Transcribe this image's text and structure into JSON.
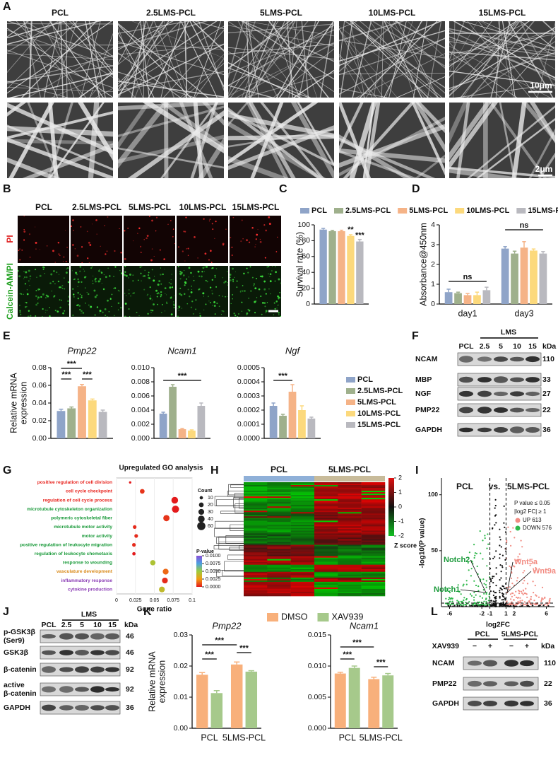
{
  "panel_labels": [
    "A",
    "B",
    "C",
    "D",
    "E",
    "F",
    "G",
    "H",
    "I",
    "J",
    "K",
    "L"
  ],
  "sem": {
    "columns": [
      "PCL",
      "2.5LMS-PCL",
      "5LMS-PCL",
      "10LMS-PCL",
      "15LMS-PCL"
    ],
    "scale_bars": [
      "10μm",
      "2μm"
    ]
  },
  "live_dead": {
    "columns": [
      "PCL",
      "2.5LMS-PCL",
      "5LMS-PCL",
      "10LMS-PCL",
      "15LMS-PCL"
    ],
    "rows": [
      "PI",
      "Calcein-AM/PI"
    ]
  },
  "blot_f": {
    "group": "LMS",
    "lanes": [
      "PCL",
      "2.5",
      "5",
      "10",
      "15"
    ],
    "unit": "kDa",
    "rows": [
      {
        "lines": [
          "NCAM"
        ],
        "kda": 110
      },
      {
        "lines": [
          "MBP"
        ],
        "kda": 33
      },
      {
        "lines": [
          "NGF"
        ],
        "kda": 27
      },
      {
        "lines": [
          "PMP22"
        ],
        "kda": 22
      },
      {
        "lines": [
          "GAPDH"
        ],
        "kda": 36
      }
    ]
  },
  "blot_j": {
    "group": "LMS",
    "lanes": [
      "PCL",
      "2.5",
      "5",
      "10",
      "15"
    ],
    "unit": "kDa",
    "rows": [
      {
        "lines": [
          "p-GSK3β",
          "(Ser9)"
        ],
        "kda": 46
      },
      {
        "lines": [
          "GSK3β"
        ],
        "kda": 46
      },
      {
        "lines": [
          "β-catenin"
        ],
        "kda": 92
      },
      {
        "lines": [
          "active",
          "β-catenin"
        ],
        "kda": 92
      },
      {
        "lines": [
          "GAPDH"
        ],
        "kda": 36
      }
    ]
  },
  "blot_l": {
    "groups": [
      "PCL",
      "5LMS-PCL"
    ],
    "treatment": "XAV939",
    "lanes": [
      "−",
      "+",
      "−",
      "+"
    ],
    "unit": "kDa",
    "rows": [
      {
        "lines": [
          "NCAM"
        ],
        "kda": 110
      },
      {
        "lines": [
          "PMP22"
        ],
        "kda": 22
      },
      {
        "lines": [
          "GAPDH"
        ],
        "kda": 36
      }
    ]
  },
  "heatmap": {
    "groups": [
      "PCL",
      "5LMS-PCL"
    ],
    "scale_ticks": [
      2,
      1,
      0,
      -1,
      -2
    ],
    "scale_label": "Z score"
  },
  "volcano": {
    "title": [
      "PCL",
      "vs.",
      "5LMS-PCL"
    ],
    "xlabel": "log2FC",
    "ylabel": "-log10(P value)",
    "xlim": [
      -7,
      7
    ],
    "ylim": [
      0,
      115
    ],
    "xticks": [
      -6,
      -2,
      -1,
      1,
      2,
      6
    ],
    "yticks": [
      50,
      100
    ],
    "notes": [
      "P value ≤ 0.05",
      "|log2 FC| ≥ 1"
    ],
    "legend": [
      "UP 613",
      "DOWN 576"
    ],
    "genes": [
      "Notch2",
      "Notch1",
      "Wnt5a",
      "Wnt9a"
    ]
  },
  "chart_data": [
    {
      "type": "bar",
      "ylabel": "Survival rate (%)",
      "categories": [
        null
      ],
      "series": [
        {
          "name": "PCL",
          "color": "#8fa4c8",
          "values": [
            94
          ],
          "errors": [
            1.5
          ]
        },
        {
          "name": "2.5LMS-PCL",
          "color": "#9fb08c",
          "values": [
            92
          ],
          "errors": [
            1
          ]
        },
        {
          "name": "5LMS-PCL",
          "color": "#f5b387",
          "values": [
            92
          ],
          "errors": [
            1.2
          ]
        },
        {
          "name": "10LMS-PCL",
          "color": "#fcd97c",
          "values": [
            86
          ],
          "errors": [
            1.5
          ]
        },
        {
          "name": "15LMS-PCL",
          "color": "#b9b9bf",
          "values": [
            79
          ],
          "errors": [
            2.5
          ]
        }
      ],
      "ylim": [
        0,
        100
      ],
      "yticks": [
        0,
        20,
        40,
        60,
        80,
        100
      ],
      "annotations": [
        "**",
        "***"
      ]
    },
    {
      "type": "bar",
      "ylabel": "Absorbance@450nm",
      "categories": [
        "day1",
        "day3"
      ],
      "series": [
        {
          "color": "#8fa4c8",
          "values": [
            0.6,
            2.8
          ],
          "errors": [
            0.15,
            0.1
          ]
        },
        {
          "color": "#9fb08c",
          "values": [
            0.55,
            2.55
          ],
          "errors": [
            0.05,
            0.12
          ]
        },
        {
          "color": "#f5b387",
          "values": [
            0.45,
            2.85
          ],
          "errors": [
            0.08,
            0.3
          ]
        },
        {
          "color": "#fcd97c",
          "values": [
            0.45,
            2.7
          ],
          "errors": [
            0.15,
            0.08
          ]
        },
        {
          "color": "#b9b9bf",
          "values": [
            0.7,
            2.55
          ],
          "errors": [
            0.15,
            0.1
          ]
        }
      ],
      "ylim": [
        0,
        4
      ],
      "yticks": [
        0,
        1,
        2,
        3,
        4
      ],
      "annotations": [
        "ns",
        "ns"
      ]
    },
    {
      "type": "bar",
      "title": "Pmp22",
      "ylabel": [
        "Relative mRNA",
        "expression"
      ],
      "categories": [
        null
      ],
      "series": [
        {
          "name": "PCL",
          "color": "#8fa4c8",
          "values": [
            0.031
          ],
          "errors": [
            0.002
          ]
        },
        {
          "name": "2.5LMS-PCL",
          "color": "#9fb08c",
          "values": [
            0.034
          ],
          "errors": [
            0.0015
          ]
        },
        {
          "name": "5LMS-PCL",
          "color": "#f5b387",
          "values": [
            0.059
          ],
          "errors": [
            0.002
          ]
        },
        {
          "name": "10LMS-PCL",
          "color": "#fcd97c",
          "values": [
            0.043
          ],
          "errors": [
            0.0015
          ]
        },
        {
          "name": "15LMS-PCL",
          "color": "#b9b9bf",
          "values": [
            0.03
          ],
          "errors": [
            0.002
          ]
        }
      ],
      "ylim": [
        0,
        0.08
      ],
      "yticks": [
        {
          "value": 0,
          "label": "0.00"
        },
        {
          "value": 0.02,
          "label": "0.02"
        },
        {
          "value": 0.04,
          "label": "0.04"
        },
        {
          "value": 0.06,
          "label": "0.06"
        },
        {
          "value": 0.08,
          "label": "0.08"
        }
      ],
      "annotations": [
        "***",
        "***",
        "***"
      ]
    },
    {
      "type": "bar",
      "title": "Ncam1",
      "categories": [
        null
      ],
      "series": [
        {
          "color": "#8fa4c8",
          "values": [
            0.0035
          ],
          "errors": [
            0.0002
          ]
        },
        {
          "color": "#9fb08c",
          "values": [
            0.0073
          ],
          "errors": [
            0.0003
          ]
        },
        {
          "color": "#f5b387",
          "values": [
            0.0013
          ],
          "errors": [
            0.0001
          ]
        },
        {
          "color": "#fcd97c",
          "values": [
            0.0011
          ],
          "errors": [
            0.0001
          ]
        },
        {
          "color": "#b9b9bf",
          "values": [
            0.0046
          ],
          "errors": [
            0.0004
          ]
        }
      ],
      "ylim": [
        0,
        0.01
      ],
      "yticks": [
        {
          "value": 0,
          "label": "0.000"
        },
        {
          "value": 0.002,
          "label": "0.002"
        },
        {
          "value": 0.004,
          "label": "0.004"
        },
        {
          "value": 0.006,
          "label": "0.006"
        },
        {
          "value": 0.008,
          "label": "0.008"
        },
        {
          "value": 0.01,
          "label": "0.010"
        }
      ],
      "annotations": [
        "***"
      ]
    },
    {
      "type": "bar",
      "title": "Ngf",
      "categories": [
        null
      ],
      "series": [
        {
          "color": "#8fa4c8",
          "values": [
            0.00023
          ],
          "errors": [
            2e-05
          ]
        },
        {
          "color": "#9fb08c",
          "values": [
            0.00016
          ],
          "errors": [
            1e-05
          ]
        },
        {
          "color": "#f5b387",
          "values": [
            0.00033
          ],
          "errors": [
            5e-05
          ]
        },
        {
          "color": "#fcd97c",
          "values": [
            0.0002
          ],
          "errors": [
            3e-05
          ]
        },
        {
          "color": "#b9b9bf",
          "values": [
            0.00014
          ],
          "errors": [
            1e-05
          ]
        }
      ],
      "ylim": [
        0,
        0.0005
      ],
      "yticks": [
        {
          "value": 0,
          "label": "0.0000"
        },
        {
          "value": 0.0001,
          "label": "0.0001"
        },
        {
          "value": 0.0002,
          "label": "0.0002"
        },
        {
          "value": 0.0003,
          "label": "0.0003"
        },
        {
          "value": 0.0004,
          "label": "0.0004"
        },
        {
          "value": 0.0005,
          "label": "0.0005"
        }
      ],
      "annotations": [
        "***"
      ]
    },
    {
      "type": "bar",
      "title": "Pmp22",
      "ylabel": [
        "Relative mRNA",
        "expression"
      ],
      "categories": [
        "PCL",
        "5LMS-PCL"
      ],
      "series": [
        {
          "name": "DMSO",
          "color": "#f8b07b",
          "values": [
            0.0172,
            0.0205
          ],
          "errors": [
            0.0007,
            0.0008
          ]
        },
        {
          "name": "XAV939",
          "color": "#a6c98b",
          "values": [
            0.0113,
            0.0182
          ],
          "errors": [
            0.0008,
            0.0003
          ]
        }
      ],
      "ylim": [
        0,
        0.03
      ],
      "yticks": [
        {
          "value": 0,
          "label": "0.00"
        },
        {
          "value": 0.01,
          "label": "0.01"
        },
        {
          "value": 0.02,
          "label": "0.02"
        },
        {
          "value": 0.03,
          "label": "0.03"
        }
      ],
      "annotations": [
        "***",
        "***",
        "***"
      ]
    },
    {
      "type": "bar",
      "title": "Ncam1",
      "categories": [
        "PCL",
        "5LMS-PCL"
      ],
      "series": [
        {
          "color": "#f8b07b",
          "values": [
            0.0088,
            0.0079
          ],
          "errors": [
            0.0002,
            0.0003
          ]
        },
        {
          "color": "#a6c98b",
          "values": [
            0.0097,
            0.0085
          ],
          "errors": [
            0.0003,
            0.0003
          ]
        }
      ],
      "ylim": [
        0,
        0.015
      ],
      "yticks": [
        {
          "value": 0,
          "label": "0.000"
        },
        {
          "value": 0.005,
          "label": "0.005"
        },
        {
          "value": 0.01,
          "label": "0.010"
        },
        {
          "value": 0.015,
          "label": "0.015"
        }
      ],
      "annotations": [
        "***",
        "***",
        "***"
      ]
    },
    {
      "type": "scatter",
      "title": "Upregulated GO analysis",
      "xlabel": "Gene ratio",
      "categories": [
        "positive regulation of cell division",
        "cell cycle checkpoint",
        "regulation of  cell cycle process",
        "microtubule cytoskeleton organization",
        "polymeric cytoskeletal fiber",
        "microtubule motor activity",
        "motor activity",
        "positive regulation of leukocyte migration",
        "regulation of leukocyte chemotaxis",
        "response to wounding",
        "vasculature development",
        "inflammatory response",
        "cytokine production"
      ],
      "category_colors": [
        "#e8251f",
        "#e8251f",
        "#e8251f",
        "#1a9a3a",
        "#1a9a3a",
        "#1a9a3a",
        "#1a9a3a",
        "#1a9a3a",
        "#1a9a3a",
        "#1a9a3a",
        "#d98a1a",
        "#8b3db5",
        "#8b3db5"
      ],
      "values": [
        0.018,
        0.034,
        0.077,
        0.078,
        0.066,
        0.024,
        0.026,
        0.023,
        0.023,
        0.048,
        0.065,
        0.064,
        0.06
      ],
      "counts": [
        5,
        20,
        40,
        45,
        35,
        12,
        12,
        12,
        10,
        25,
        30,
        30,
        30
      ],
      "pvalues": [
        0.0,
        0.0005,
        0.0,
        0.0,
        0.0005,
        0.0003,
        0.0003,
        0.0003,
        0.0,
        0.0045,
        0.0015,
        0.0003,
        0.004
      ],
      "xlim": [
        0,
        0.1
      ],
      "xticks": [
        0,
        0.025,
        0.05,
        0.075,
        0.1
      ],
      "size_legend": {
        "title": "Count",
        "values": [
          10,
          20,
          30,
          40,
          60
        ]
      },
      "color_legend": {
        "title": "P-value",
        "ticks": [
          {
            "value": 0.01,
            "label": "0.0100"
          },
          {
            "value": 0.0075,
            "label": "0.0075"
          },
          {
            "value": 0.005,
            "label": "0.0050"
          },
          {
            "value": 0.0025,
            "label": "0.0025"
          },
          {
            "value": 0,
            "label": "0.0000"
          }
        ]
      }
    }
  ]
}
